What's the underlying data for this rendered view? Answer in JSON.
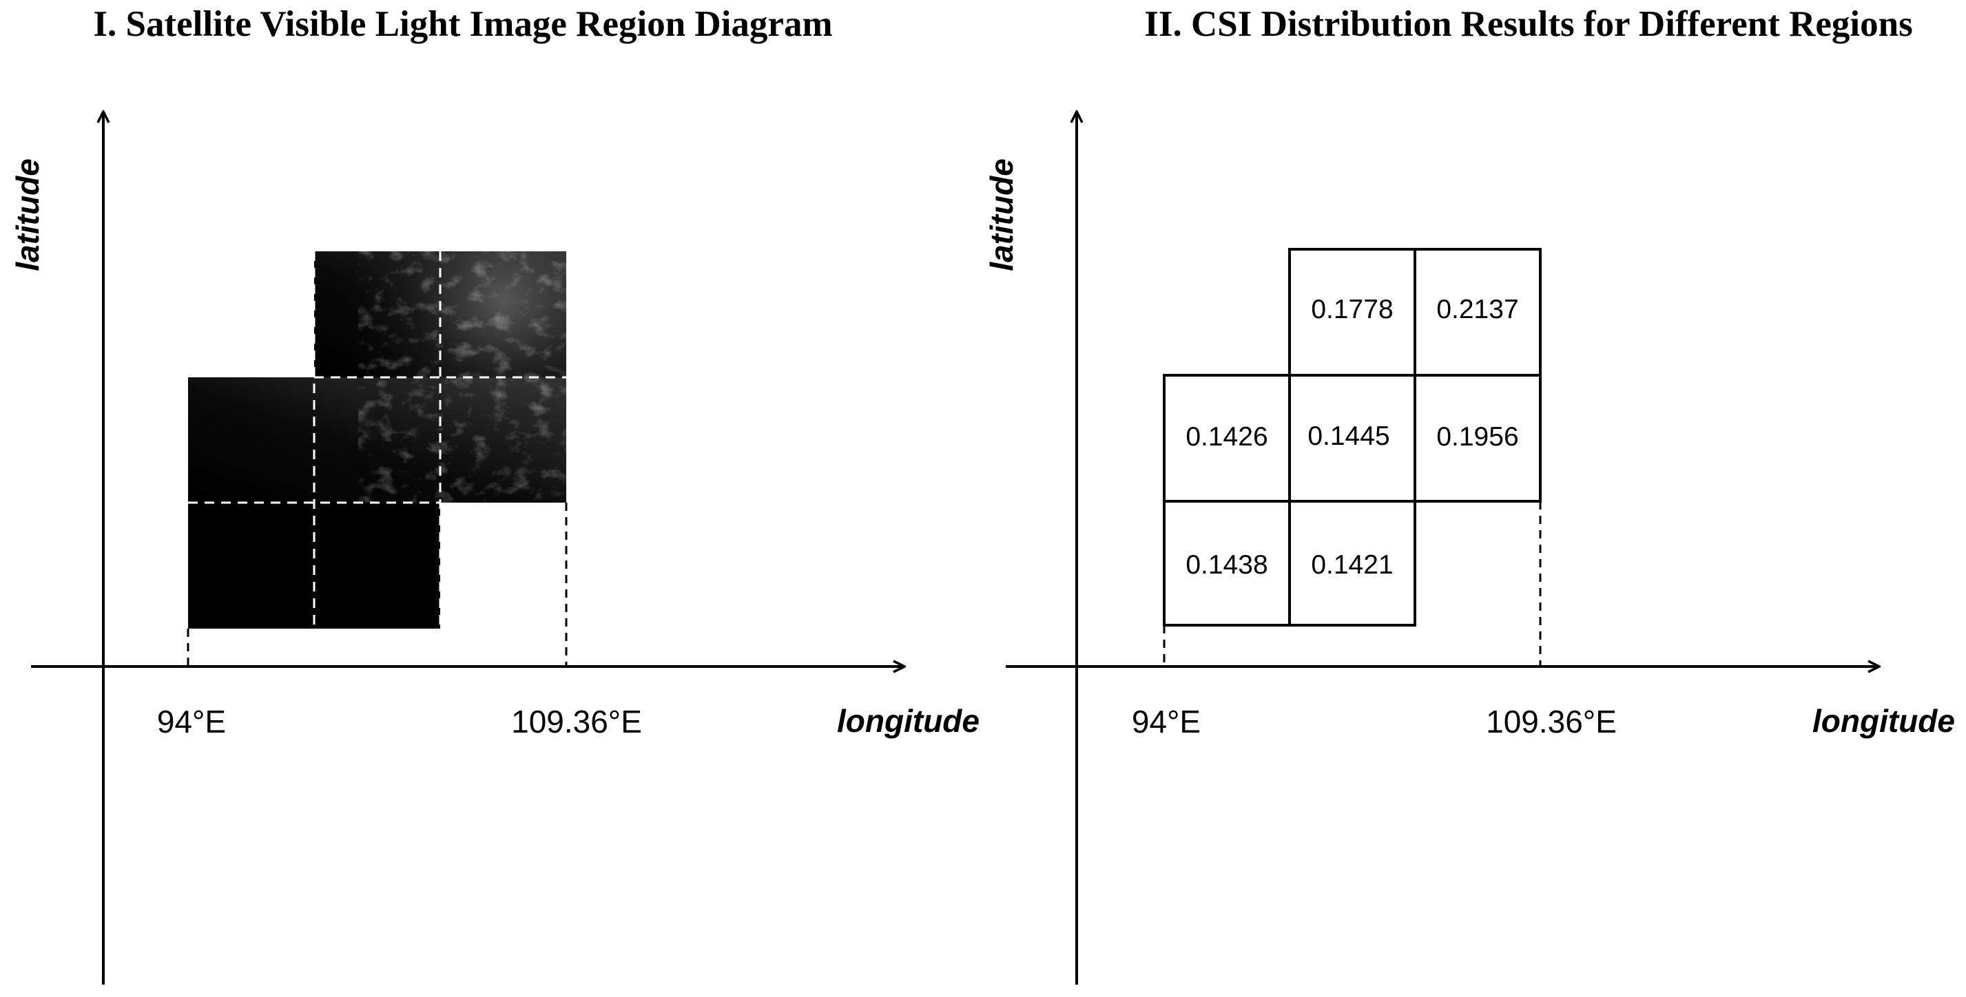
{
  "panels": {
    "left": {
      "title": "I.  Satellite Visible Light Image Region Diagram",
      "xlabel": "longitude",
      "ylabel": "latitude",
      "tick_left": "94°E",
      "tick_right": "109.36°E"
    },
    "right": {
      "title": "II.  CSI Distribution Results for Different Regions",
      "xlabel": "longitude",
      "ylabel": "latitude",
      "tick_left": "94°E",
      "tick_right": "109.36°E",
      "cells": {
        "r0c1": "0.1778",
        "r0c2": "0.2137",
        "r1c0": "0.1426",
        "r1c1": "0.1445",
        "r1c2": "0.1956",
        "r2c0": "0.1438",
        "r2c1": "0.1421"
      }
    }
  },
  "colors": {
    "image_dark": "#000000",
    "cloud_highlight": "#c8c8c8",
    "grid_dash": "#ffffff",
    "line": "#000000"
  }
}
